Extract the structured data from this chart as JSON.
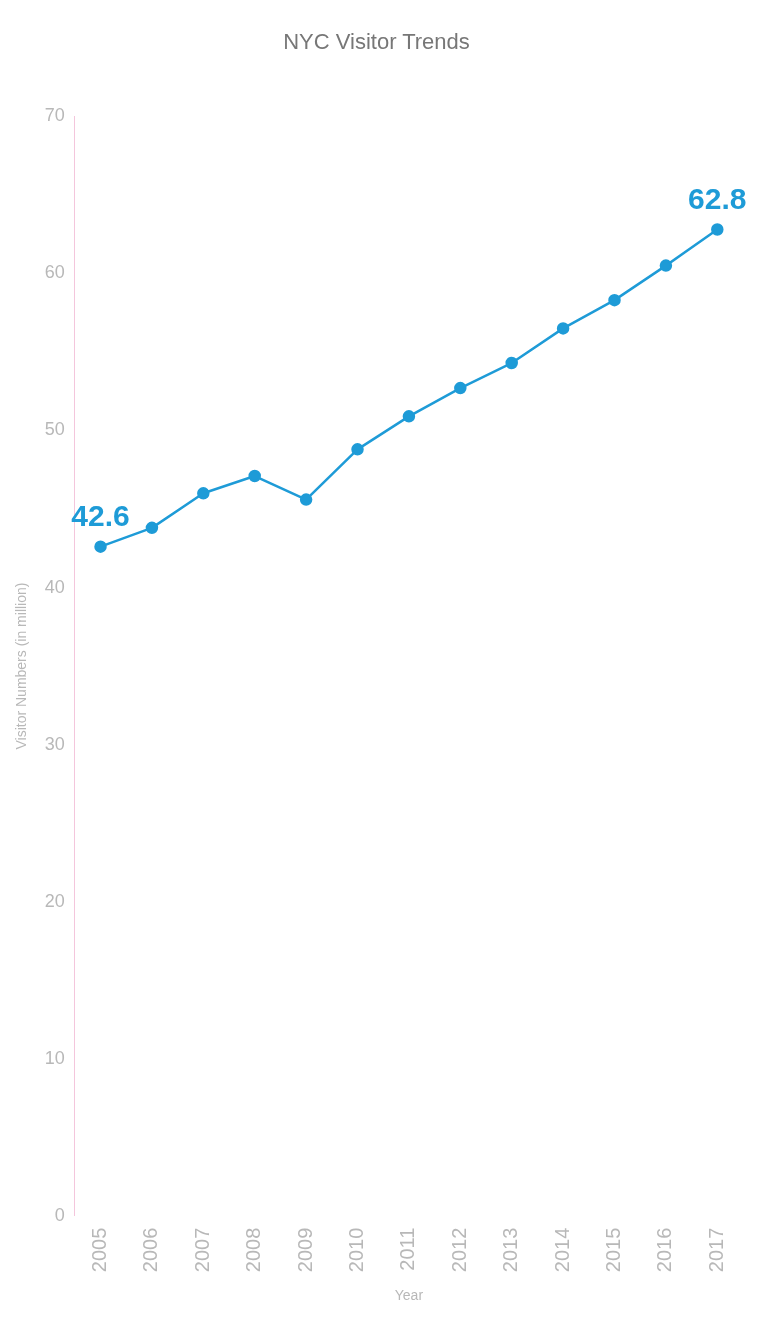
{
  "chart_data": {
    "type": "line",
    "title": "NYC Visitor Trends",
    "xlabel": "Year",
    "ylabel": "Visitor Numbers (in million)",
    "categories": [
      "2005",
      "2006",
      "2007",
      "2008",
      "2009",
      "2010",
      "2011",
      "2012",
      "2013",
      "2014",
      "2015",
      "2016",
      "2017"
    ],
    "series": [
      {
        "color": "#1e9bd7",
        "values": [
          42.6,
          43.8,
          46.0,
          47.1,
          45.6,
          48.8,
          50.9,
          52.7,
          54.3,
          56.5,
          58.3,
          60.5,
          62.8
        ],
        "value_labels": [
          "42.6",
          null,
          null,
          null,
          null,
          null,
          null,
          null,
          null,
          null,
          null,
          null,
          "62.8"
        ]
      }
    ],
    "ylim": [
      0,
      70
    ],
    "yticks": [
      0,
      10,
      20,
      30,
      40,
      50,
      60,
      70
    ],
    "grid": false,
    "legend": false,
    "marker": "circle",
    "line_style": "solid"
  }
}
